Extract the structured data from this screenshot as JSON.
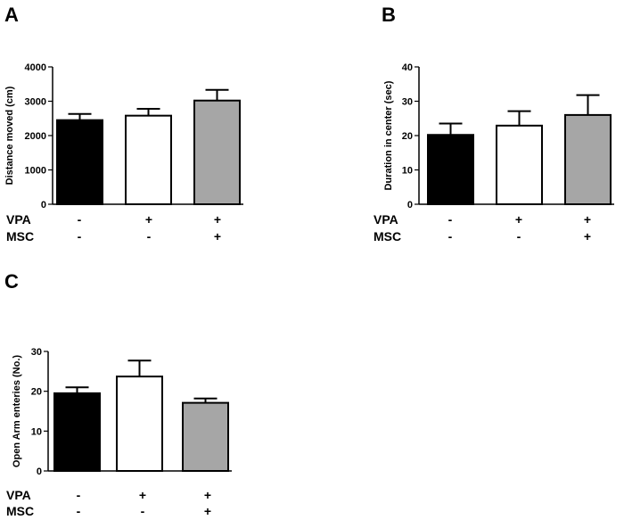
{
  "chart_data": [
    {
      "panel": "A",
      "type": "bar",
      "categories": [
        "1",
        "2",
        "3"
      ],
      "values": [
        2450,
        2580,
        3020
      ],
      "errors": [
        180,
        200,
        310
      ],
      "bar_colors": [
        "#000000",
        "#ffffff",
        "#a6a6a6"
      ],
      "ylabel": "Distance moved (cm)",
      "ylim": [
        0,
        4000
      ],
      "yticks": [
        "0",
        "1000",
        "2000",
        "3000",
        "4000"
      ],
      "conditions": [
        {
          "label": "VPA",
          "signs": [
            "-",
            "+",
            "+"
          ]
        },
        {
          "label": "MSC",
          "signs": [
            "-",
            "-",
            "+"
          ]
        }
      ]
    },
    {
      "panel": "B",
      "type": "bar",
      "categories": [
        "1",
        "2",
        "3"
      ],
      "values": [
        20.2,
        22.9,
        26.0
      ],
      "errors": [
        3.3,
        4.2,
        5.8
      ],
      "bar_colors": [
        "#000000",
        "#ffffff",
        "#a6a6a6"
      ],
      "ylabel": "Duration in center (sec)",
      "ylim": [
        0,
        40
      ],
      "yticks": [
        "0",
        "10",
        "20",
        "30",
        "40"
      ],
      "conditions": [
        {
          "label": "VPA",
          "signs": [
            "-",
            "+",
            "+"
          ]
        },
        {
          "label": "MSC",
          "signs": [
            "-",
            "-",
            "+"
          ]
        }
      ]
    },
    {
      "panel": "C",
      "type": "bar",
      "categories": [
        "1",
        "2",
        "3"
      ],
      "values": [
        19.5,
        23.7,
        17.1
      ],
      "errors": [
        1.5,
        4.0,
        1.1
      ],
      "bar_colors": [
        "#000000",
        "#ffffff",
        "#a6a6a6"
      ],
      "ylabel": "Open Arm enteries (No.)",
      "ylim": [
        0,
        30
      ],
      "yticks": [
        "0",
        "10",
        "20",
        "30"
      ],
      "conditions": [
        {
          "label": "VPA",
          "signs": [
            "-",
            "+",
            "+"
          ]
        },
        {
          "label": "MSC",
          "signs": [
            "-",
            "-",
            "+"
          ]
        }
      ]
    }
  ]
}
